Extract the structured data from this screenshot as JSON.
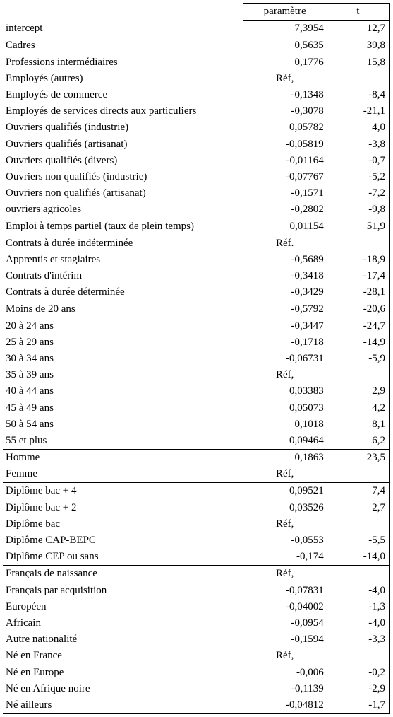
{
  "header": {
    "param_label": "paramètre",
    "t_label": "t"
  },
  "ref_label": "Réf,",
  "ref_label_dot": "Réf.",
  "sections": [
    [
      {
        "label": "intercept",
        "param": "7,3954",
        "t": "12,7"
      }
    ],
    [
      {
        "label": "Cadres",
        "param": "0,5635",
        "t": "39,8"
      },
      {
        "label": "Professions intermédiaires",
        "param": "0,1776",
        "t": "15,8"
      },
      {
        "label": "Employés (autres)",
        "ref": true
      },
      {
        "label": "Employés de commerce",
        "param": "-0,1348",
        "t": "-8,4"
      },
      {
        "label": "Employés de services directs aux particuliers",
        "param": "-0,3078",
        "t": "-21,1"
      },
      {
        "label": "Ouvriers qualifiés (industrie)",
        "param": "0,05782",
        "t": "4,0"
      },
      {
        "label": "Ouvriers qualifiés (artisanat)",
        "param": "-0,05819",
        "t": "-3,8"
      },
      {
        "label": "Ouvriers qualifiés (divers)",
        "param": "-0,01164",
        "t": "-0,7"
      },
      {
        "label": "Ouvriers non qualifiés (industrie)",
        "param": "-0,07767",
        "t": "-5,2"
      },
      {
        "label": "Ouvriers non qualifiés (artisanat)",
        "param": "-0,1571",
        "t": "-7,2"
      },
      {
        "label": "ouvriers agricoles",
        "param": "-0,2802",
        "t": "-9,8"
      }
    ],
    [
      {
        "label": "Emploi à temps partiel (taux de plein temps)",
        "param": "0,01154",
        "t": "51,9"
      },
      {
        "label": "Contrats à durée indéterminée",
        "ref": true,
        "ref_style": "dot"
      },
      {
        "label": "Apprentis et stagiaires",
        "param": "-0,5689",
        "t": "-18,9"
      },
      {
        "label": "Contrats d'intérim",
        "param": "-0,3418",
        "t": "-17,4"
      },
      {
        "label": "Contrats à durée déterminée",
        "param": "-0,3429",
        "t": "-28,1"
      }
    ],
    [
      {
        "label": "Moins de 20 ans",
        "param": "-0,5792",
        "t": "-20,6"
      },
      {
        "label": "20 à 24 ans",
        "param": "-0,3447",
        "t": "-24,7"
      },
      {
        "label": "25 à 29 ans",
        "param": "-0,1718",
        "t": "-14,9"
      },
      {
        "label": "30 à 34 ans",
        "param": "-0,06731",
        "t": "-5,9"
      },
      {
        "label": "35 à 39 ans",
        "ref": true
      },
      {
        "label": "40 à 44 ans",
        "param": "0,03383",
        "t": "2,9"
      },
      {
        "label": "45 à 49 ans",
        "param": "0,05073",
        "t": "4,2"
      },
      {
        "label": "50 à 54 ans",
        "param": "0,1018",
        "t": "8,1"
      },
      {
        "label": "55 et plus",
        "param": "0,09464",
        "t": "6,2"
      }
    ],
    [
      {
        "label": "Homme",
        "param": "0,1863",
        "t": "23,5"
      },
      {
        "label": "Femme",
        "ref": true
      }
    ],
    [
      {
        "label": "Diplôme bac + 4",
        "param": "0,09521",
        "t": "7,4"
      },
      {
        "label": "Diplôme bac + 2",
        "param": "0,03526",
        "t": "2,7"
      },
      {
        "label": "Diplôme bac",
        "ref": true
      },
      {
        "label": "Diplôme CAP-BEPC",
        "param": "-0,0553",
        "t": "-5,5"
      },
      {
        "label": "Diplôme CEP ou sans",
        "param": "-0,174",
        "t": "-14,0"
      }
    ],
    [
      {
        "label": "Français de naissance",
        "ref": true
      },
      {
        "label": "Français par acquisition",
        "param": "-0,07831",
        "t": "-4,0"
      },
      {
        "label": "Européen",
        "param": "-0,04002",
        "t": "-1,3"
      },
      {
        "label": "Africain",
        "param": "-0,0954",
        "t": "-4,0"
      },
      {
        "label": "Autre nationalité",
        "param": "-0,1594",
        "t": "-3,3"
      },
      {
        "label": "Né en France",
        "ref": true
      },
      {
        "label": "Né en Europe",
        "param": "-0,006",
        "t": "-0,2"
      },
      {
        "label": "Né en Afrique noire",
        "param": "-0,1139",
        "t": "-2,9"
      },
      {
        "label": "Né ailleurs",
        "param": "-0,04812",
        "t": "-1,7"
      }
    ]
  ]
}
